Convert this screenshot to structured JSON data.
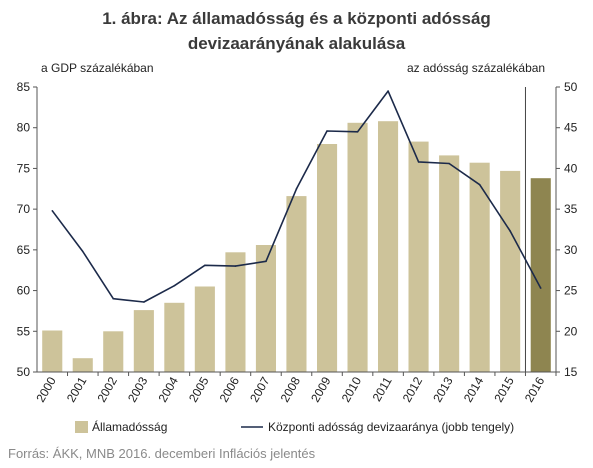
{
  "title_line1": "1. ábra: Az államadósság és a központi adósság",
  "title_line2": "devizaarányának alakulása",
  "left_axis_unit": "a GDP százalékában",
  "right_axis_unit": "az adósság százalékában",
  "source": "Forrás: ÁKK, MNB 2016. decemberi Inflációs jelentés",
  "chart_data": {
    "type": "bar",
    "categories": [
      "2000",
      "2001",
      "2002",
      "2003",
      "2004",
      "2005",
      "2006",
      "2007",
      "2008",
      "2009",
      "2010",
      "2011",
      "2012",
      "2013",
      "2014",
      "2015",
      "2016"
    ],
    "series": [
      {
        "name": "Államadósság",
        "type": "bar",
        "axis": "left",
        "color": "#cdc39a",
        "highlight_last_color": "#8e8550",
        "values": [
          55.1,
          51.7,
          55.0,
          57.6,
          58.5,
          60.5,
          64.7,
          65.6,
          71.6,
          78.0,
          80.6,
          80.8,
          78.3,
          76.6,
          75.7,
          74.7,
          73.8
        ]
      },
      {
        "name": "Központi adósság devizaaránya (jobb tengely)",
        "type": "line",
        "axis": "right",
        "color": "#1c2a4a",
        "values": [
          34.8,
          29.8,
          24.0,
          23.6,
          25.6,
          28.1,
          28.0,
          28.6,
          37.5,
          44.6,
          44.5,
          49.5,
          40.8,
          40.6,
          38.0,
          32.3,
          25.3
        ]
      }
    ],
    "y_left": {
      "min": 50,
      "max": 85,
      "ticks": [
        50,
        55,
        60,
        65,
        70,
        75,
        80,
        85
      ]
    },
    "y_right": {
      "min": 15,
      "max": 50,
      "ticks": [
        15,
        20,
        25,
        30,
        35,
        40,
        45,
        50
      ]
    },
    "grid": false,
    "legend": "bottom",
    "forecast_separator_after": "2015"
  }
}
